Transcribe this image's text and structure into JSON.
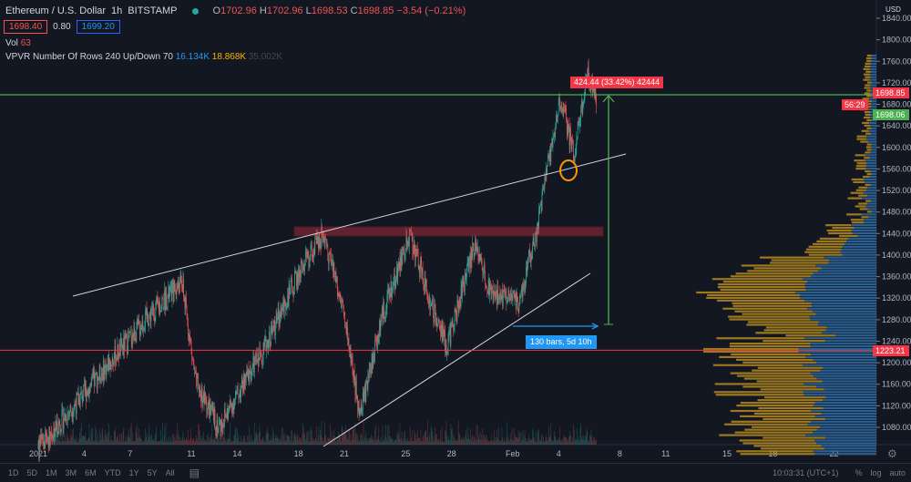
{
  "header": {
    "symbol": "Ethereum / U.S. Dollar",
    "interval": "1h",
    "exchange": "BITSTAMP",
    "o_label": "O",
    "open": "1702.96",
    "h_label": "H",
    "high": "1702.96",
    "l_label": "L",
    "low": "1698.53",
    "c_label": "C",
    "close": "1698.85",
    "change": "−3.54 (−0.21%)",
    "bid": "1698.40",
    "spread": "0.80",
    "ask": "1699.20"
  },
  "vol": {
    "label": "Vol",
    "value": "63"
  },
  "vpvr": {
    "label": "VPVR Number Of Rows 240 Up/Down 70",
    "up": "16.134K",
    "down": "18.868K",
    "total": "35.002K"
  },
  "price_axis": {
    "currency": "USD",
    "ticks": [
      "1840.00",
      "1800.00",
      "1760.00",
      "1720.00",
      "1680.00",
      "1640.00",
      "1600.00",
      "1560.00",
      "1520.00",
      "1480.00",
      "1440.00",
      "1400.00",
      "1360.00",
      "1320.00",
      "1280.00",
      "1240.00",
      "1200.00",
      "1160.00",
      "1120.00",
      "1080.00"
    ],
    "last_price": "1698.85",
    "countdown": "56:29",
    "low_tag": "1698.06",
    "red_line": "1223.21"
  },
  "time_axis": {
    "ticks": [
      "2021",
      "4",
      "7",
      "11",
      "14",
      "18",
      "21",
      "25",
      "28",
      "Feb",
      "4",
      "8",
      "11",
      "15",
      "18",
      "22"
    ]
  },
  "measure": {
    "label": "424.44 (33.42%) 42444",
    "range_label": "130 bars, 5d 10h"
  },
  "colors": {
    "up": "#26a69a",
    "down": "#ef5350",
    "vp_up": "#2e6ca4",
    "vp_down": "#b58a1f",
    "green_line": "#4caf50",
    "red_line": "#f23645"
  },
  "chart_data": {
    "type": "candlestick",
    "anchors_day_price": [
      [
        0,
        1040
      ],
      [
        7,
        1280
      ],
      [
        9.4,
        1350
      ],
      [
        10.3,
        1160
      ],
      [
        11.8,
        1080
      ],
      [
        14.8,
        1230
      ],
      [
        17.1,
        1370
      ],
      [
        18.6,
        1440
      ],
      [
        19.8,
        1320
      ],
      [
        21,
        1100
      ],
      [
        22.5,
        1290
      ],
      [
        24.3,
        1440
      ],
      [
        25.5,
        1320
      ],
      [
        26.7,
        1230
      ],
      [
        28.5,
        1420
      ],
      [
        29.6,
        1330
      ],
      [
        31.4,
        1310
      ],
      [
        32.6,
        1450
      ],
      [
        33.2,
        1550
      ],
      [
        34.1,
        1690
      ],
      [
        35,
        1590
      ],
      [
        35.9,
        1740
      ],
      [
        36.5,
        1690
      ]
    ]
  },
  "footer": {
    "ranges": [
      "1D",
      "5D",
      "1M",
      "3M",
      "6M",
      "YTD",
      "1Y",
      "5Y",
      "All"
    ],
    "time": "10:03:31 (UTC+1)",
    "pct": "%",
    "log": "log",
    "auto": "auto"
  }
}
